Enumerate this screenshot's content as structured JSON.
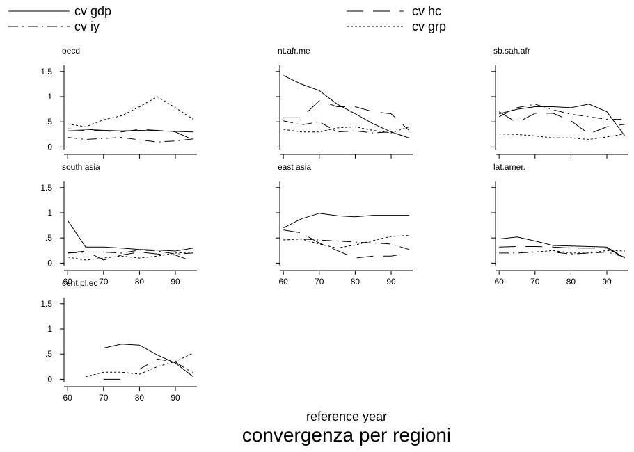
{
  "chart_data": {
    "type": "line",
    "title": "convergenza per regioni",
    "xlabel": "reference year",
    "ylabel": "",
    "x_ticks": [
      60,
      70,
      80,
      90
    ],
    "xlim": [
      59,
      96
    ],
    "y_ticks": [
      {
        "value": 0,
        "label": "0"
      },
      {
        "value": 0.5,
        "label": ".5"
      },
      {
        "value": 1,
        "label": "1"
      },
      {
        "value": 1.5,
        "label": "1.5"
      }
    ],
    "ylim": [
      -0.05,
      1.58
    ],
    "legend": {
      "placement": "top",
      "entries": [
        {
          "name": "cv gdp",
          "style": "solid"
        },
        {
          "name": "cv hc",
          "style": "long-dash"
        },
        {
          "name": "cv iy",
          "style": "dash-dot"
        },
        {
          "name": "cv grp",
          "style": "dotted"
        }
      ]
    },
    "panels": [
      {
        "name": "oecd",
        "series": [
          {
            "name": "cv gdp",
            "points": [
              [
                60,
                0.36
              ],
              [
                65,
                0.35
              ],
              [
                70,
                0.33
              ],
              [
                75,
                0.32
              ],
              [
                80,
                0.33
              ],
              [
                85,
                0.32
              ],
              [
                90,
                0.31
              ],
              [
                95,
                0.3
              ]
            ]
          },
          {
            "name": "cv hc",
            "points": [
              [
                60,
                0.32
              ],
              [
                65,
                0.33
              ],
              [
                70,
                0.32
              ],
              [
                75,
                0.3
              ],
              [
                80,
                0.35
              ],
              [
                85,
                0.33
              ],
              [
                90,
                0.3
              ],
              [
                95,
                0.14
              ]
            ]
          },
          {
            "name": "cv iy",
            "points": [
              [
                60,
                0.19
              ],
              [
                65,
                0.15
              ],
              [
                70,
                0.17
              ],
              [
                75,
                0.19
              ],
              [
                80,
                0.14
              ],
              [
                85,
                0.1
              ],
              [
                90,
                0.12
              ],
              [
                95,
                0.16
              ]
            ]
          },
          {
            "name": "cv grp",
            "points": [
              [
                60,
                0.46
              ],
              [
                65,
                0.4
              ],
              [
                70,
                0.54
              ],
              [
                75,
                0.62
              ],
              [
                80,
                0.8
              ],
              [
                85,
                1.0
              ],
              [
                90,
                0.78
              ],
              [
                95,
                0.55
              ]
            ]
          }
        ]
      },
      {
        "name": "nt.afr.me",
        "series": [
          {
            "name": "cv gdp",
            "points": [
              [
                60,
                1.42
              ],
              [
                65,
                1.25
              ],
              [
                70,
                1.12
              ],
              [
                75,
                0.85
              ],
              [
                80,
                0.66
              ],
              [
                85,
                0.46
              ],
              [
                90,
                0.3
              ],
              [
                95,
                0.18
              ]
            ]
          },
          {
            "name": "cv hc",
            "points": [
              [
                60,
                0.58
              ],
              [
                65,
                0.58
              ],
              [
                70,
                0.92
              ],
              [
                75,
                0.8
              ],
              [
                80,
                0.8
              ],
              [
                85,
                0.7
              ],
              [
                90,
                0.66
              ],
              [
                95,
                0.33
              ]
            ]
          },
          {
            "name": "cv iy",
            "points": [
              [
                60,
                0.52
              ],
              [
                65,
                0.44
              ],
              [
                70,
                0.5
              ],
              [
                75,
                0.3
              ],
              [
                80,
                0.32
              ],
              [
                85,
                0.28
              ],
              [
                90,
                0.3
              ],
              [
                95,
                0.18
              ]
            ]
          },
          {
            "name": "cv grp",
            "points": [
              [
                60,
                0.35
              ],
              [
                65,
                0.3
              ],
              [
                70,
                0.3
              ],
              [
                75,
                0.38
              ],
              [
                80,
                0.4
              ],
              [
                85,
                0.33
              ],
              [
                90,
                0.28
              ],
              [
                95,
                0.4
              ]
            ]
          }
        ]
      },
      {
        "name": "sb.sah.afr",
        "series": [
          {
            "name": "cv gdp",
            "points": [
              [
                60,
                0.66
              ],
              [
                65,
                0.75
              ],
              [
                70,
                0.8
              ],
              [
                75,
                0.8
              ],
              [
                80,
                0.78
              ],
              [
                85,
                0.85
              ],
              [
                90,
                0.7
              ],
              [
                95,
                0.22
              ]
            ]
          },
          {
            "name": "cv hc",
            "points": [
              [
                60,
                0.7
              ],
              [
                65,
                0.48
              ],
              [
                70,
                0.67
              ],
              [
                75,
                0.67
              ],
              [
                80,
                0.52
              ],
              [
                85,
                0.26
              ],
              [
                90,
                0.4
              ],
              [
                95,
                0.45
              ]
            ]
          },
          {
            "name": "cv iy",
            "points": [
              [
                60,
                0.6
              ],
              [
                65,
                0.78
              ],
              [
                70,
                0.85
              ],
              [
                75,
                0.74
              ],
              [
                80,
                0.65
              ],
              [
                85,
                0.6
              ],
              [
                90,
                0.55
              ],
              [
                95,
                0.55
              ]
            ]
          },
          {
            "name": "cv grp",
            "points": [
              [
                60,
                0.26
              ],
              [
                65,
                0.25
              ],
              [
                70,
                0.22
              ],
              [
                75,
                0.18
              ],
              [
                80,
                0.18
              ],
              [
                85,
                0.15
              ],
              [
                90,
                0.2
              ],
              [
                95,
                0.26
              ]
            ]
          }
        ]
      },
      {
        "name": "south asia",
        "series": [
          {
            "name": "cv gdp",
            "points": [
              [
                60,
                0.85
              ],
              [
                65,
                0.32
              ],
              [
                70,
                0.32
              ],
              [
                75,
                0.3
              ],
              [
                80,
                0.27
              ],
              [
                85,
                0.26
              ],
              [
                90,
                0.24
              ],
              [
                95,
                0.3
              ]
            ]
          },
          {
            "name": "cv hc",
            "points": [
              [
                60,
                0.2
              ],
              [
                65,
                0.24
              ],
              [
                70,
                0.06
              ],
              [
                75,
                0.16
              ],
              [
                80,
                0.22
              ],
              [
                85,
                0.18
              ],
              [
                90,
                0.16
              ],
              [
                95,
                0.03
              ]
            ]
          },
          {
            "name": "cv iy",
            "points": [
              [
                60,
                0.2
              ],
              [
                65,
                0.22
              ],
              [
                70,
                0.22
              ],
              [
                75,
                0.2
              ],
              [
                80,
                0.26
              ],
              [
                85,
                0.24
              ],
              [
                90,
                0.18
              ],
              [
                95,
                0.2
              ]
            ]
          },
          {
            "name": "cv grp",
            "points": [
              [
                60,
                0.12
              ],
              [
                65,
                0.06
              ],
              [
                70,
                0.1
              ],
              [
                75,
                0.14
              ],
              [
                80,
                0.1
              ],
              [
                85,
                0.14
              ],
              [
                90,
                0.2
              ],
              [
                95,
                0.22
              ]
            ]
          }
        ]
      },
      {
        "name": "east asia",
        "series": [
          {
            "name": "cv gdp",
            "points": [
              [
                60,
                0.7
              ],
              [
                65,
                0.88
              ],
              [
                70,
                0.99
              ],
              [
                75,
                0.94
              ],
              [
                80,
                0.92
              ],
              [
                85,
                0.95
              ],
              [
                90,
                0.95
              ],
              [
                95,
                0.95
              ]
            ]
          },
          {
            "name": "cv hc",
            "points": [
              [
                60,
                0.66
              ],
              [
                65,
                0.6
              ],
              [
                70,
                0.4
              ],
              [
                75,
                0.25
              ],
              [
                80,
                0.1
              ],
              [
                85,
                0.14
              ],
              [
                90,
                0.14
              ],
              [
                95,
                0.2
              ]
            ]
          },
          {
            "name": "cv iy",
            "points": [
              [
                60,
                0.48
              ],
              [
                65,
                0.48
              ],
              [
                70,
                0.46
              ],
              [
                75,
                0.44
              ],
              [
                80,
                0.42
              ],
              [
                85,
                0.4
              ],
              [
                90,
                0.38
              ],
              [
                95,
                0.27
              ]
            ]
          },
          {
            "name": "cv grp",
            "points": [
              [
                60,
                0.46
              ],
              [
                65,
                0.48
              ],
              [
                70,
                0.38
              ],
              [
                75,
                0.3
              ],
              [
                80,
                0.36
              ],
              [
                85,
                0.45
              ],
              [
                90,
                0.53
              ],
              [
                95,
                0.55
              ]
            ]
          }
        ]
      },
      {
        "name": "lat.amer.",
        "series": [
          {
            "name": "cv gdp",
            "points": [
              [
                60,
                0.48
              ],
              [
                65,
                0.52
              ],
              [
                70,
                0.44
              ],
              [
                75,
                0.35
              ],
              [
                80,
                0.34
              ],
              [
                85,
                0.33
              ],
              [
                90,
                0.32
              ],
              [
                95,
                0.1
              ]
            ]
          },
          {
            "name": "cv hc",
            "points": [
              [
                60,
                0.32
              ],
              [
                65,
                0.33
              ],
              [
                70,
                0.33
              ],
              [
                75,
                0.32
              ],
              [
                80,
                0.3
              ],
              [
                85,
                0.3
              ],
              [
                90,
                0.3
              ],
              [
                95,
                0.1
              ]
            ]
          },
          {
            "name": "cv iy",
            "points": [
              [
                60,
                0.2
              ],
              [
                65,
                0.2
              ],
              [
                70,
                0.22
              ],
              [
                75,
                0.22
              ],
              [
                80,
                0.18
              ],
              [
                85,
                0.2
              ],
              [
                90,
                0.22
              ],
              [
                95,
                0.12
              ]
            ]
          },
          {
            "name": "cv grp",
            "points": [
              [
                60,
                0.22
              ],
              [
                65,
                0.22
              ],
              [
                70,
                0.22
              ],
              [
                75,
                0.25
              ],
              [
                80,
                0.2
              ],
              [
                85,
                0.2
              ],
              [
                90,
                0.25
              ],
              [
                95,
                0.24
              ]
            ]
          }
        ]
      },
      {
        "name": "cent.pl.ec",
        "series": [
          {
            "name": "cv gdp",
            "points": [
              [
                70,
                0.62
              ],
              [
                75,
                0.7
              ],
              [
                80,
                0.68
              ],
              [
                85,
                0.48
              ],
              [
                90,
                0.32
              ],
              [
                95,
                0.05
              ]
            ]
          },
          {
            "name": "cv hc",
            "points": [
              [
                70,
                0.0
              ],
              [
                75,
                0.0
              ]
            ]
          },
          {
            "name": "cv iy",
            "points": [
              [
                80,
                0.2
              ],
              [
                85,
                0.4
              ],
              [
                90,
                0.34
              ],
              [
                95,
                0.12
              ]
            ]
          },
          {
            "name": "cv grp",
            "points": [
              [
                65,
                0.05
              ],
              [
                70,
                0.14
              ],
              [
                75,
                0.14
              ],
              [
                80,
                0.1
              ],
              [
                85,
                0.25
              ],
              [
                90,
                0.35
              ],
              [
                95,
                0.52
              ]
            ]
          }
        ]
      }
    ]
  }
}
